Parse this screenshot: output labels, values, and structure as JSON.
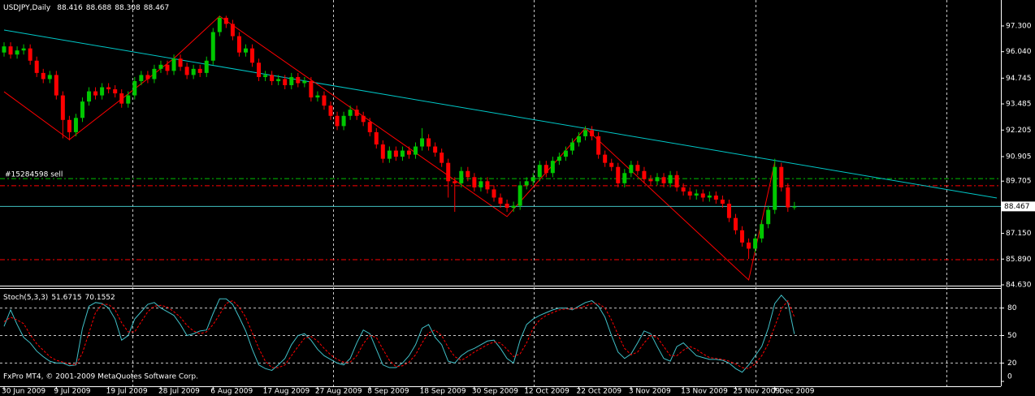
{
  "chart_data": {
    "type": "candlestick",
    "title": "USDJPY,Daily",
    "categories": [
      "30 Jun 2009",
      null,
      null,
      null,
      null,
      null,
      null,
      null,
      "9 Jul 2009",
      null,
      null,
      null,
      null,
      null,
      null,
      null,
      "19 Jul 2009",
      null,
      null,
      null,
      null,
      null,
      null,
      null,
      "28 Jul 2009",
      null,
      null,
      null,
      null,
      null,
      null,
      null,
      "6 Aug 2009",
      null,
      null,
      null,
      null,
      null,
      null,
      null,
      "17 Aug 2009",
      null,
      null,
      null,
      null,
      null,
      null,
      null,
      "27 Aug 2009",
      null,
      null,
      null,
      null,
      null,
      null,
      null,
      "8 Sep 2009",
      null,
      null,
      null,
      null,
      null,
      null,
      null,
      "18 Sep 2009",
      null,
      null,
      null,
      null,
      null,
      null,
      null,
      "30 Sep 2009",
      null,
      null,
      null,
      null,
      null,
      null,
      null,
      "12 Oct 2009",
      null,
      null,
      null,
      null,
      null,
      null,
      null,
      "22 Oct 2009",
      null,
      null,
      null,
      null,
      null,
      null,
      null,
      "3 Nov 2009",
      null,
      null,
      null,
      null,
      null,
      null,
      null,
      "13 Nov 2009",
      null,
      null,
      null,
      null,
      null,
      null,
      null,
      "25 Nov 2009",
      null,
      null,
      null,
      null,
      null,
      "7 Dec 2009",
      null,
      null,
      null
    ],
    "open": [
      96.0,
      96.3,
      95.9,
      96.1,
      96.2,
      95.6,
      95.0,
      94.7,
      94.9,
      93.9,
      92.7,
      92.1,
      92.8,
      93.6,
      94.1,
      93.9,
      94.3,
      94.2,
      94.0,
      93.5,
      93.9,
      94.6,
      94.9,
      94.7,
      95.2,
      95.4,
      95.1,
      95.7,
      95.3,
      94.9,
      95.2,
      95.0,
      95.6,
      97.0,
      97.7,
      97.4,
      96.8,
      96.0,
      96.2,
      95.5,
      94.8,
      94.9,
      94.6,
      94.7,
      94.4,
      94.8,
      94.5,
      94.6,
      93.8,
      93.9,
      93.4,
      92.9,
      92.4,
      92.9,
      93.2,
      92.9,
      92.6,
      92.1,
      91.5,
      90.8,
      91.2,
      90.9,
      91.2,
      91.0,
      91.4,
      91.8,
      91.4,
      91.1,
      90.6,
      89.7,
      89.6,
      90.2,
      89.9,
      89.4,
      89.7,
      89.3,
      88.9,
      88.6,
      88.4,
      88.5,
      89.5,
      89.7,
      89.9,
      90.5,
      90.1,
      90.7,
      90.9,
      91.2,
      91.6,
      91.9,
      92.2,
      91.9,
      91.0,
      90.6,
      90.4,
      89.6,
      90.1,
      90.5,
      90.2,
      89.8,
      89.7,
      89.9,
      89.6,
      90.0,
      89.4,
      89.2,
      89.0,
      89.1,
      88.9,
      89.0,
      88.8,
      88.6,
      87.9,
      87.3,
      86.7,
      86.4,
      86.9,
      87.6,
      88.3,
      90.4,
      89.4,
      88.416
    ],
    "high": [
      96.5,
      96.5,
      96.3,
      96.4,
      96.4,
      95.8,
      95.2,
      95.1,
      95.1,
      94.1,
      92.9,
      93.0,
      93.8,
      94.3,
      94.3,
      94.5,
      94.5,
      94.4,
      94.2,
      94.1,
      94.8,
      95.1,
      95.1,
      95.4,
      95.6,
      95.6,
      95.9,
      95.9,
      95.5,
      95.4,
      95.4,
      95.8,
      97.2,
      97.8,
      97.8,
      97.6,
      97.0,
      96.4,
      96.4,
      95.7,
      95.1,
      95.1,
      94.9,
      94.9,
      95.0,
      95.0,
      94.8,
      94.8,
      94.1,
      94.1,
      93.6,
      93.1,
      93.1,
      93.4,
      93.4,
      93.1,
      92.8,
      92.3,
      91.7,
      91.4,
      91.4,
      91.4,
      91.4,
      91.6,
      92.3,
      92.0,
      91.6,
      91.3,
      90.8,
      89.9,
      90.4,
      90.4,
      90.1,
      89.9,
      89.9,
      89.5,
      89.1,
      88.8,
      88.7,
      89.7,
      89.9,
      90.1,
      90.7,
      90.7,
      90.9,
      91.1,
      91.4,
      91.8,
      92.1,
      92.4,
      92.4,
      92.1,
      91.2,
      90.8,
      90.6,
      90.3,
      90.7,
      90.7,
      90.4,
      90.0,
      90.1,
      90.1,
      90.2,
      90.2,
      89.6,
      89.4,
      89.3,
      89.3,
      89.2,
      89.2,
      89.0,
      88.8,
      88.1,
      87.5,
      86.9,
      87.1,
      87.8,
      88.5,
      90.8,
      90.6,
      89.6,
      88.688
    ],
    "low": [
      95.8,
      95.7,
      95.7,
      95.9,
      95.4,
      94.8,
      94.5,
      94.5,
      93.7,
      91.8,
      91.7,
      91.9,
      92.6,
      93.4,
      93.7,
      93.7,
      94.0,
      93.8,
      93.3,
      93.3,
      93.7,
      94.4,
      94.5,
      94.5,
      95.0,
      94.9,
      94.9,
      95.1,
      94.7,
      94.7,
      94.8,
      94.8,
      95.4,
      96.8,
      97.2,
      96.6,
      95.8,
      95.8,
      95.3,
      94.6,
      94.6,
      94.4,
      94.4,
      94.2,
      94.2,
      94.3,
      94.3,
      93.6,
      93.6,
      93.2,
      92.7,
      92.2,
      92.2,
      92.7,
      92.7,
      92.4,
      91.9,
      91.3,
      90.6,
      90.6,
      90.7,
      90.7,
      90.8,
      90.8,
      91.2,
      91.2,
      90.9,
      90.4,
      88.9,
      88.2,
      89.4,
      89.7,
      89.2,
      89.2,
      89.1,
      88.7,
      88.4,
      88.2,
      88.2,
      88.3,
      89.3,
      89.5,
      89.7,
      89.9,
      89.9,
      90.5,
      90.7,
      91.0,
      91.4,
      91.7,
      91.7,
      90.8,
      90.4,
      90.2,
      89.4,
      89.4,
      89.9,
      90.0,
      89.6,
      89.5,
      89.5,
      89.4,
      89.4,
      89.2,
      89.0,
      88.8,
      88.8,
      88.7,
      88.7,
      88.6,
      88.4,
      87.7,
      87.1,
      86.5,
      85.9,
      86.2,
      86.7,
      87.4,
      88.1,
      89.2,
      88.2,
      88.308
    ],
    "close": [
      96.3,
      95.9,
      96.1,
      96.2,
      95.6,
      95.0,
      94.7,
      94.9,
      93.9,
      92.7,
      92.1,
      92.8,
      93.6,
      94.1,
      93.9,
      94.3,
      94.2,
      94.0,
      93.5,
      93.9,
      94.6,
      94.9,
      94.7,
      95.2,
      95.4,
      95.1,
      95.7,
      95.3,
      94.9,
      95.2,
      95.0,
      95.6,
      97.0,
      97.7,
      97.4,
      96.8,
      96.0,
      96.2,
      95.5,
      94.8,
      94.9,
      94.6,
      94.7,
      94.4,
      94.8,
      94.5,
      94.6,
      93.8,
      93.9,
      93.4,
      92.9,
      92.4,
      92.9,
      93.2,
      92.9,
      92.6,
      92.1,
      91.5,
      90.8,
      91.2,
      90.9,
      91.2,
      91.0,
      91.4,
      91.8,
      91.4,
      91.1,
      90.6,
      89.7,
      89.6,
      90.2,
      89.9,
      89.4,
      89.7,
      89.3,
      88.9,
      88.6,
      88.4,
      88.5,
      89.5,
      89.7,
      89.9,
      90.5,
      90.1,
      90.7,
      90.9,
      91.2,
      91.6,
      91.9,
      92.2,
      91.9,
      91.0,
      90.6,
      90.4,
      89.6,
      90.1,
      90.5,
      90.2,
      89.8,
      89.7,
      89.9,
      89.6,
      90.0,
      89.4,
      89.2,
      89.0,
      89.1,
      88.9,
      89.0,
      88.8,
      88.6,
      87.9,
      87.3,
      86.7,
      86.4,
      86.9,
      87.6,
      88.3,
      90.4,
      89.4,
      88.42,
      88.467
    ],
    "up_color": "#00c800",
    "down_color": "#ff0000",
    "ylim": [
      84.59,
      98.57
    ],
    "yticks": [
      {
        "value": 97.3,
        "label": "97.300"
      },
      {
        "value": 96.04,
        "label": "96.040"
      },
      94.745,
      93.485,
      92.205,
      90.905,
      89.705,
      {
        "value": 87.15,
        "label": "87.150"
      },
      {
        "value": 85.89,
        "label": "85.890"
      },
      {
        "value": 84.63,
        "label": "84.630"
      }
    ],
    "bid_color": "#40c0c0",
    "trendline": {
      "color": "#00c8c8",
      "index": [
        0,
        152
      ],
      "values": [
        97.1,
        88.88
      ]
    },
    "zigzag": {
      "color": "#ff0000",
      "index": [
        0,
        10,
        26,
        33,
        77,
        89,
        114,
        118
      ],
      "values": [
        94.08,
        91.74,
        95.71,
        97.78,
        87.97,
        92.3,
        84.87,
        90.63
      ]
    },
    "order_lines": [
      {
        "price": 89.83,
        "color": "#00c000",
        "label": "#15284598 sell"
      },
      {
        "price": 89.48,
        "color": "#ff0000"
      },
      {
        "price": 85.86,
        "color": "#ff0000"
      }
    ],
    "indicator": {
      "name": "Stoch(5,3,3)",
      "ylim": [
        0,
        100
      ],
      "yticks": [
        80,
        50,
        20,
        0
      ],
      "levels": [
        80,
        50,
        20
      ],
      "series": [
        {
          "color": "#40c0c8",
          "values": [
            60,
            78,
            62,
            48,
            42,
            33,
            27,
            22,
            20,
            20,
            17,
            18,
            58,
            82,
            86,
            85,
            80,
            68,
            45,
            50,
            68,
            76,
            84,
            86,
            80,
            76,
            72,
            62,
            50,
            52,
            55,
            56,
            74,
            90,
            90,
            84,
            70,
            55,
            35,
            18,
            14,
            12,
            18,
            25,
            40,
            50,
            52,
            45,
            35,
            28,
            24,
            20,
            18,
            25,
            42,
            56,
            52,
            35,
            18,
            15,
            15,
            20,
            28,
            40,
            58,
            62,
            48,
            40,
            22,
            20,
            28,
            33,
            36,
            40,
            44,
            45,
            36,
            25,
            20,
            45,
            62,
            68,
            72,
            75,
            78,
            80,
            80,
            78,
            82,
            86,
            88,
            82,
            70,
            50,
            32,
            25,
            30,
            42,
            55,
            52,
            38,
            25,
            22,
            38,
            42,
            35,
            28,
            26,
            24,
            24,
            23,
            20,
            14,
            10,
            18,
            28,
            38,
            58,
            85,
            94,
            86,
            51.6715
          ]
        },
        {
          "color": "#ff0000",
          "dashed": true,
          "values": [
            65,
            70,
            67,
            63,
            51,
            41,
            34,
            27,
            23,
            21,
            19,
            18,
            31,
            53,
            75,
            84,
            84,
            78,
            64,
            54,
            54,
            65,
            76,
            82,
            83,
            81,
            76,
            70,
            61,
            55,
            52,
            54,
            62,
            73,
            85,
            88,
            81,
            70,
            53,
            36,
            22,
            15,
            15,
            18,
            28,
            38,
            47,
            49,
            44,
            36,
            29,
            24,
            21,
            21,
            28,
            41,
            50,
            48,
            35,
            23,
            16,
            17,
            21,
            29,
            42,
            53,
            56,
            50,
            37,
            27,
            23,
            27,
            32,
            36,
            40,
            43,
            42,
            35,
            27,
            30,
            42,
            58,
            67,
            72,
            75,
            78,
            79,
            79,
            80,
            82,
            85,
            85,
            80,
            67,
            51,
            36,
            29,
            32,
            42,
            50,
            48,
            38,
            28,
            28,
            34,
            38,
            35,
            30,
            26,
            25,
            24,
            22,
            19,
            15,
            14,
            19,
            28,
            41,
            60,
            79,
            88,
            70.1552
          ]
        }
      ]
    },
    "footer": "FxPro MT4, © 2001-2009 MetaQuotes Software Corp."
  }
}
